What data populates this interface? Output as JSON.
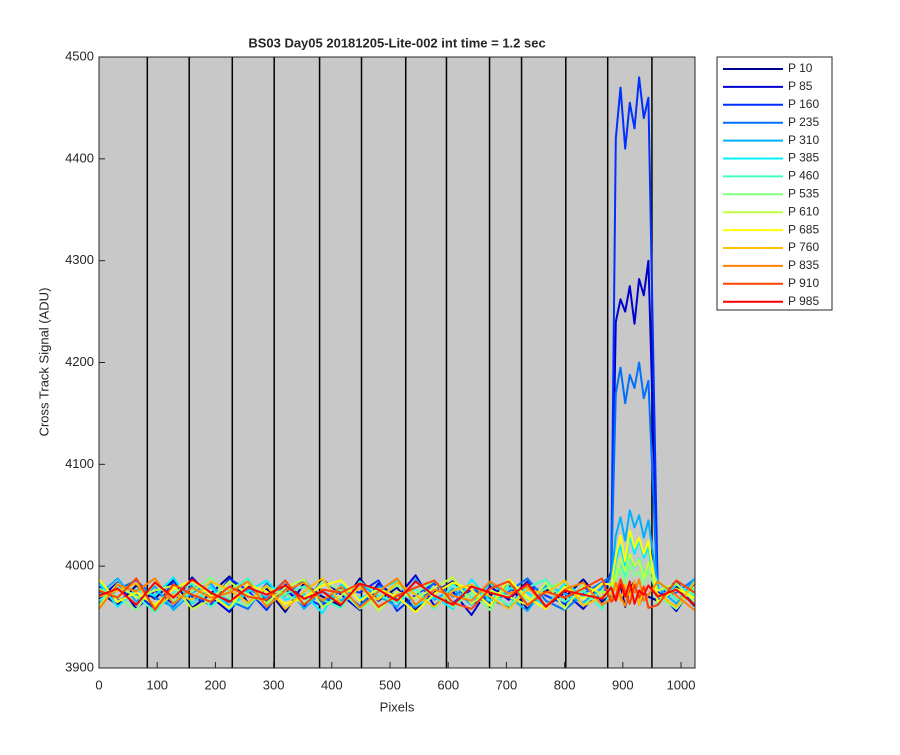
{
  "chart_data": {
    "type": "line",
    "title": "BS03 Day05 20181205-Lite-002 int time = 1.2 sec",
    "x_label": "Pixels",
    "y_label": "Cross Track Signal (ADU)",
    "xlim": [
      0,
      1024
    ],
    "ylim": [
      3900,
      4500
    ],
    "xticks": [
      0,
      100,
      200,
      300,
      400,
      500,
      600,
      700,
      800,
      900,
      1000
    ],
    "yticks": [
      3900,
      4000,
      4100,
      4200,
      4300,
      4400,
      4500
    ],
    "vlines": [
      83,
      155,
      229,
      301,
      379,
      451,
      527,
      597,
      671,
      726,
      802,
      874,
      950
    ],
    "legend": "outside-upper-right",
    "x": [
      0,
      32,
      64,
      96,
      128,
      160,
      192,
      224,
      256,
      288,
      320,
      352,
      384,
      416,
      448,
      480,
      512,
      544,
      576,
      608,
      640,
      672,
      704,
      736,
      768,
      800,
      832,
      864,
      880,
      888,
      896,
      904,
      912,
      920,
      928,
      936,
      944,
      960,
      992,
      1023
    ],
    "series": [
      {
        "name": "P 10",
        "color": "#00008f",
        "values": [
          3975,
          3962,
          3981,
          3968,
          3986,
          3959,
          3973,
          3990,
          3964,
          3978,
          3955,
          3983,
          3970,
          3961,
          3988,
          3966,
          3979,
          3957,
          3974,
          3985,
          3963,
          3971,
          3982,
          3958,
          3977,
          3969,
          3987,
          3965,
          3972,
          3968,
          3981,
          3960,
          3977,
          3985,
          3962,
          3974,
          3970,
          3966,
          3980,
          3961
        ]
      },
      {
        "name": "P 85",
        "color": "#0000d0",
        "values": [
          3968,
          3984,
          3958,
          3976,
          3963,
          3989,
          3970,
          3955,
          3981,
          3966,
          3978,
          3960,
          3987,
          3972,
          3957,
          3983,
          3969,
          3991,
          3961,
          3975,
          3952,
          3980,
          3967,
          3985,
          3960,
          3974,
          3958,
          3979,
          3990,
          4240,
          4262,
          4250,
          4275,
          4238,
          4282,
          4266,
          4300,
          3975,
          3956,
          3983
        ]
      },
      {
        "name": "P 160",
        "color": "#0030ff",
        "values": [
          3980,
          3966,
          3973,
          3958,
          3985,
          3970,
          3962,
          3988,
          3976,
          3957,
          3982,
          3969,
          3961,
          3979,
          3974,
          3986,
          3956,
          3972,
          3983,
          3964,
          3977,
          3968,
          3959,
          3984,
          3971,
          3963,
          3980,
          3967,
          3995,
          4420,
          4470,
          4410,
          4455,
          4430,
          4480,
          4440,
          4460,
          3970,
          3985,
          3962
        ]
      },
      {
        "name": "P 235",
        "color": "#0070ff",
        "values": [
          3963,
          3977,
          3986,
          3969,
          3960,
          3981,
          3974,
          3966,
          3958,
          3983,
          3971,
          3987,
          3964,
          3976,
          3961,
          3980,
          3968,
          3959,
          3985,
          3970,
          3982,
          3962,
          3975,
          3988,
          3966,
          3957,
          3973,
          3984,
          3990,
          4170,
          4195,
          4160,
          4188,
          4175,
          4200,
          4165,
          4182,
          3968,
          3974,
          3987
        ]
      },
      {
        "name": "P 310",
        "color": "#00b0ff",
        "values": [
          3972,
          3988,
          3965,
          3980,
          3957,
          3974,
          3983,
          3961,
          3977,
          3969,
          3986,
          3958,
          3975,
          3966,
          3982,
          3971,
          3960,
          3987,
          3967,
          3978,
          3962,
          3984,
          3970,
          3956,
          3981,
          3973,
          3964,
          3979,
          3985,
          4030,
          4048,
          4025,
          4055,
          4038,
          4050,
          4028,
          4045,
          3979,
          3963,
          3988
        ]
      },
      {
        "name": "P 385",
        "color": "#00f0ff",
        "values": [
          3984,
          3960,
          3977,
          3971,
          3989,
          3963,
          3980,
          3958,
          3975,
          3986,
          3967,
          3973,
          3954,
          3982,
          3968,
          3977,
          3985,
          3961,
          3970,
          3958,
          3987,
          3966,
          3979,
          3974,
          3960,
          3983,
          3971,
          3969,
          3980,
          4005,
          4020,
          4000,
          4030,
          4012,
          4025,
          4008,
          4018,
          3962,
          3982,
          3970
        ]
      },
      {
        "name": "P 460",
        "color": "#40ffc0",
        "values": [
          3966,
          3979,
          3971,
          3955,
          3974,
          3983,
          3960,
          3976,
          3988,
          3962,
          3973,
          3980,
          3967,
          3959,
          3985,
          3972,
          3964,
          3978,
          3958,
          3982,
          3969,
          3975,
          3961,
          3979,
          3987,
          3965,
          3976,
          3958,
          3975,
          3995,
          4005,
          3990,
          4010,
          3998,
          4008,
          3992,
          4002,
          3984,
          3967,
          3975
        ]
      },
      {
        "name": "P 535",
        "color": "#80ff80",
        "values": [
          3978,
          3970,
          3957,
          3984,
          3966,
          3975,
          3989,
          3968,
          3961,
          3980,
          3972,
          3963,
          3985,
          3976,
          3958,
          3969,
          3981,
          3973,
          3986,
          3960,
          3974,
          3957,
          3983,
          3967,
          3978,
          3985,
          3962,
          3976,
          3972,
          3985,
          3998,
          3980,
          4002,
          3990,
          3995,
          3982,
          3996,
          3971,
          3958,
          3980
        ]
      },
      {
        "name": "P 610",
        "color": "#c0ff40",
        "values": [
          3961,
          3983,
          3969,
          3976,
          3981,
          3958,
          3967,
          3985,
          3972,
          3964,
          3979,
          3987,
          3960,
          3971,
          3983,
          3956,
          3975,
          3968,
          3979,
          3989,
          3963,
          3976,
          3970,
          3962,
          3984,
          3958,
          3981,
          3973,
          3978,
          3990,
          4008,
          3995,
          4012,
          4000,
          4006,
          3988,
          4004,
          3976,
          3983,
          3965
        ]
      },
      {
        "name": "P 685",
        "color": "#ffff00",
        "values": [
          3987,
          3965,
          3974,
          3962,
          3978,
          3986,
          3971,
          3959,
          3982,
          3975,
          3963,
          3969,
          3981,
          3986,
          3966,
          3978,
          3970,
          3955,
          3973,
          3984,
          3977,
          3961,
          3987,
          3969,
          3958,
          3980,
          3968,
          3983,
          3982,
          4010,
          4030,
          4005,
          4035,
          4018,
          4028,
          4012,
          4025,
          3965,
          3978,
          3969
        ]
      },
      {
        "name": "P 760",
        "color": "#ffc000",
        "values": [
          3970,
          3976,
          3983,
          3960,
          3972,
          3967,
          3985,
          3977,
          3964,
          3981,
          3958,
          3975,
          3988,
          3963,
          3979,
          3967,
          3984,
          3972,
          3960,
          3976,
          3982,
          3970,
          3958,
          3977,
          3973,
          3986,
          3961,
          3970,
          3974,
          3978,
          3966,
          3982,
          3971,
          3985,
          3962,
          3977,
          3980,
          3973,
          3960,
          3984
        ]
      },
      {
        "name": "P 835",
        "color": "#ff8000",
        "values": [
          3958,
          3982,
          3975,
          3988,
          3963,
          3979,
          3969,
          3974,
          3985,
          3960,
          3976,
          3984,
          3966,
          3980,
          3959,
          3975,
          3988,
          3962,
          3977,
          3971,
          3966,
          3985,
          3973,
          3980,
          3961,
          3977,
          3984,
          3962,
          3968,
          3984,
          3970,
          3961,
          3980,
          3974,
          3987,
          3966,
          3972,
          3985,
          3971,
          3957
        ]
      },
      {
        "name": "P 910",
        "color": "#ff4000",
        "values": [
          3976,
          3969,
          3988,
          3957,
          3982,
          3972,
          3965,
          3980,
          3970,
          3967,
          3986,
          3962,
          3977,
          3974,
          3983,
          3960,
          3971,
          3979,
          3986,
          3964,
          3958,
          3978,
          3985,
          3962,
          3975,
          3969,
          3978,
          3988,
          3965,
          3970,
          3987,
          3975,
          3963,
          3982,
          3969,
          3980,
          3959,
          3962,
          3986,
          3974
        ]
      },
      {
        "name": "P 985",
        "color": "#ff0000",
        "values": [
          3971,
          3978,
          3962,
          3984,
          3969,
          3987,
          3974,
          3965,
          3979,
          3972,
          3981,
          3968,
          3975,
          3962,
          3983,
          3977,
          3966,
          3985,
          3971,
          3962,
          3980,
          3974,
          3969,
          3983,
          3960,
          3976,
          3972,
          3968,
          3979,
          3966,
          3982,
          3970,
          3985,
          3963,
          3976,
          3972,
          3981,
          3970,
          3977,
          3962
        ]
      }
    ]
  }
}
